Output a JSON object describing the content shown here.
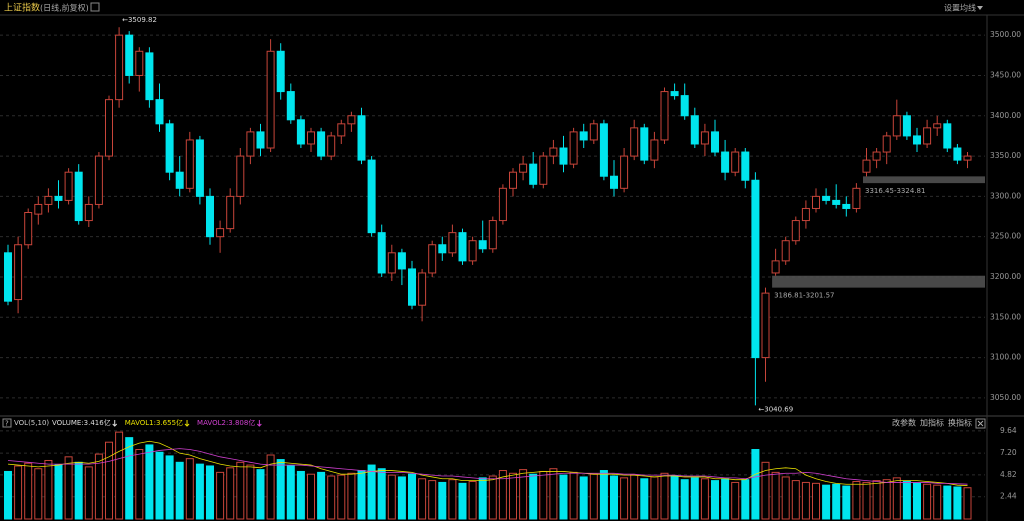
{
  "header": {
    "title": "上证指数",
    "subtitle": "(日线,前复权)",
    "menu": "设置均线"
  },
  "chart_data": [
    {
      "type": "candlestick",
      "open": [
        3230,
        3172,
        3240,
        3278,
        3290,
        3300,
        3295,
        3330,
        3270,
        3290,
        3350,
        3420,
        3500,
        3450,
        3478,
        3420,
        3390,
        3330,
        3310,
        3370,
        3300,
        3250,
        3260,
        3300,
        3350,
        3380,
        3360,
        3480,
        3430,
        3395,
        3365,
        3380,
        3350,
        3375,
        3390,
        3400,
        3345,
        3255,
        3205,
        3230,
        3210,
        3165,
        3205,
        3240,
        3230,
        3255,
        3220,
        3245,
        3235,
        3270,
        3310,
        3330,
        3340,
        3315,
        3350,
        3360,
        3340,
        3380,
        3370,
        3390,
        3325,
        3310,
        3350,
        3385,
        3345,
        3370,
        3430,
        3425,
        3400,
        3365,
        3380,
        3355,
        3330,
        3355,
        3320,
        3100,
        3205,
        3220,
        3245,
        3270,
        3285,
        3300,
        3295,
        3290,
        3285,
        3330,
        3345,
        3355,
        3375,
        3400,
        3375,
        3365,
        3385,
        3390,
        3360,
        3345
      ],
      "high": [
        3240,
        3250,
        3285,
        3300,
        3310,
        3320,
        3335,
        3340,
        3300,
        3355,
        3425,
        3509.82,
        3505,
        3485,
        3485,
        3440,
        3395,
        3350,
        3380,
        3375,
        3310,
        3270,
        3310,
        3360,
        3385,
        3390,
        3495,
        3490,
        3440,
        3400,
        3385,
        3385,
        3380,
        3395,
        3405,
        3410,
        3350,
        3265,
        3240,
        3235,
        3220,
        3210,
        3245,
        3250,
        3265,
        3260,
        3250,
        3270,
        3275,
        3315,
        3335,
        3350,
        3355,
        3355,
        3370,
        3375,
        3385,
        3390,
        3395,
        3395,
        3345,
        3360,
        3395,
        3390,
        3380,
        3435,
        3440,
        3440,
        3410,
        3390,
        3395,
        3370,
        3360,
        3360,
        3330,
        3186.81,
        3235,
        3250,
        3275,
        3295,
        3310,
        3310,
        3315,
        3300,
        3316.45,
        3360,
        3360,
        3380,
        3420,
        3405,
        3385,
        3395,
        3400,
        3395,
        3365,
        3355
      ],
      "low": [
        3165,
        3155,
        3235,
        3265,
        3280,
        3285,
        3290,
        3265,
        3262,
        3285,
        3345,
        3410,
        3440,
        3430,
        3410,
        3380,
        3320,
        3300,
        3305,
        3290,
        3240,
        3230,
        3255,
        3290,
        3340,
        3350,
        3355,
        3420,
        3390,
        3360,
        3355,
        3345,
        3345,
        3365,
        3380,
        3340,
        3250,
        3200,
        3195,
        3190,
        3160,
        3145,
        3200,
        3220,
        3225,
        3215,
        3215,
        3230,
        3230,
        3265,
        3300,
        3320,
        3310,
        3310,
        3340,
        3330,
        3335,
        3360,
        3365,
        3320,
        3300,
        3305,
        3345,
        3340,
        3335,
        3365,
        3420,
        3395,
        3360,
        3350,
        3350,
        3320,
        3325,
        3310,
        3040.69,
        3070,
        3201.57,
        3215,
        3240,
        3260,
        3280,
        3290,
        3285,
        3275,
        3280,
        3324.81,
        3335,
        3340,
        3370,
        3370,
        3355,
        3360,
        3375,
        3355,
        3340,
        3335
      ],
      "close": [
        3170,
        3240,
        3280,
        3290,
        3300,
        3295,
        3330,
        3270,
        3290,
        3350,
        3420,
        3500,
        3450,
        3480,
        3420,
        3390,
        3330,
        3310,
        3370,
        3300,
        3250,
        3260,
        3300,
        3350,
        3380,
        3360,
        3480,
        3430,
        3395,
        3365,
        3380,
        3350,
        3375,
        3390,
        3400,
        3345,
        3255,
        3205,
        3230,
        3210,
        3165,
        3205,
        3240,
        3230,
        3255,
        3220,
        3245,
        3235,
        3270,
        3310,
        3330,
        3340,
        3315,
        3350,
        3360,
        3340,
        3380,
        3370,
        3390,
        3325,
        3310,
        3350,
        3385,
        3345,
        3370,
        3430,
        3425,
        3400,
        3365,
        3380,
        3355,
        3330,
        3355,
        3320,
        3100,
        3180,
        3220,
        3245,
        3270,
        3285,
        3300,
        3295,
        3290,
        3285,
        3310,
        3345,
        3355,
        3375,
        3400,
        3375,
        3365,
        3385,
        3390,
        3360,
        3345,
        3350
      ],
      "up_color": "#c8453a",
      "down_color": "#00e5ee",
      "ylim": [
        3035,
        3525
      ],
      "yticks": [
        {
          "value": 3050,
          "label": "3050.00"
        },
        {
          "value": 3100,
          "label": "3100.00"
        },
        {
          "value": 3150,
          "label": "3150.00"
        },
        {
          "value": 3200,
          "label": "3200.00"
        },
        {
          "value": 3250,
          "label": "3250.00"
        },
        {
          "value": 3300,
          "label": "3300.00"
        },
        {
          "value": 3350,
          "label": "3350.00"
        },
        {
          "value": 3400,
          "label": "3400.00"
        },
        {
          "value": 3450,
          "label": "3450.00"
        },
        {
          "value": 3500,
          "label": "3500.00"
        }
      ],
      "grid": true,
      "annotations": {
        "max": "←3509.82",
        "min": "←3040.69"
      },
      "gaps": [
        {
          "low": 3316.45,
          "high": 3324.81,
          "label": "3316.45-3324.81"
        },
        {
          "low": 3186.81,
          "high": 3201.57,
          "label": "3186.81-3201.57"
        }
      ]
    },
    {
      "type": "volume",
      "indicator": "VOL(5,10)",
      "series": [
        {
          "name": "VOLUME:3.416亿",
          "color": "#dddddd",
          "values": [
            5.2,
            5.8,
            6.1,
            5.5,
            6.4,
            5.9,
            6.8,
            6.2,
            5.7,
            7.1,
            8.4,
            9.5,
            8.9,
            7.6,
            8.1,
            7.3,
            6.9,
            6.2,
            6.6,
            6.0,
            5.8,
            5.1,
            5.6,
            6.2,
            5.9,
            5.4,
            7.0,
            6.5,
            5.8,
            5.2,
            4.9,
            5.1,
            4.7,
            4.8,
            5.0,
            5.3,
            5.9,
            5.5,
            4.8,
            4.6,
            4.9,
            4.4,
            4.2,
            4.0,
            4.3,
            3.9,
            4.1,
            4.5,
            4.7,
            5.3,
            5.0,
            5.4,
            4.9,
            5.2,
            5.5,
            4.8,
            5.1,
            4.6,
            4.9,
            5.3,
            4.7,
            4.5,
            4.8,
            4.4,
            4.6,
            5.0,
            4.7,
            4.3,
            4.5,
            4.4,
            4.2,
            4.4,
            4.0,
            4.3,
            7.6,
            6.2,
            5.1,
            4.6,
            4.2,
            4.0,
            3.9,
            3.7,
            3.8,
            3.6,
            4.1,
            4.0,
            4.2,
            4.3,
            4.5,
            4.1,
            3.9,
            3.8,
            3.7,
            3.6,
            3.5,
            3.42
          ]
        },
        {
          "name": "MAVOL1:3.655亿",
          "color": "#e8e000",
          "values": [
            6.0,
            5.9,
            5.8,
            5.7,
            5.8,
            5.9,
            6.1,
            6.2,
            6.1,
            6.3,
            6.8,
            7.4,
            7.9,
            8.3,
            8.5,
            8.3,
            7.8,
            7.2,
            7.0,
            6.6,
            6.3,
            6.0,
            5.8,
            5.7,
            5.7,
            5.6,
            6.0,
            6.2,
            6.1,
            6.0,
            5.9,
            5.5,
            5.2,
            4.9,
            4.9,
            5.0,
            5.2,
            5.3,
            5.3,
            5.2,
            5.1,
            4.8,
            4.6,
            4.4,
            4.4,
            4.2,
            4.2,
            4.2,
            4.3,
            4.6,
            4.8,
            5.0,
            5.1,
            5.2,
            5.2,
            5.2,
            5.1,
            5.0,
            4.9,
            4.9,
            4.9,
            4.8,
            4.8,
            4.7,
            4.6,
            4.7,
            4.7,
            4.6,
            4.6,
            4.6,
            4.4,
            4.4,
            4.3,
            4.3,
            4.9,
            5.3,
            5.5,
            5.6,
            5.5,
            4.8,
            4.4,
            4.1,
            3.9,
            3.8,
            3.8,
            3.8,
            3.9,
            4.0,
            4.2,
            4.2,
            4.2,
            4.1,
            4.0,
            3.9,
            3.7,
            3.655
          ]
        },
        {
          "name": "MAVOL2:3.808亿",
          "color": "#d040d0",
          "values": [
            6.4,
            6.3,
            6.2,
            6.1,
            6.0,
            6.0,
            6.0,
            6.0,
            6.0,
            6.1,
            6.3,
            6.6,
            6.9,
            7.1,
            7.3,
            7.5,
            7.6,
            7.7,
            7.6,
            7.4,
            7.1,
            6.8,
            6.6,
            6.4,
            6.2,
            6.0,
            5.9,
            5.9,
            5.9,
            5.9,
            5.8,
            5.7,
            5.6,
            5.5,
            5.4,
            5.3,
            5.2,
            5.1,
            5.1,
            5.1,
            5.0,
            4.9,
            4.8,
            4.7,
            4.7,
            4.6,
            4.5,
            4.4,
            4.4,
            4.4,
            4.5,
            4.6,
            4.7,
            4.8,
            4.9,
            5.0,
            5.0,
            5.0,
            5.0,
            5.0,
            5.0,
            4.9,
            4.9,
            4.8,
            4.8,
            4.8,
            4.8,
            4.7,
            4.7,
            4.7,
            4.6,
            4.5,
            4.5,
            4.4,
            4.6,
            4.8,
            4.9,
            5.0,
            5.0,
            5.1,
            5.0,
            4.8,
            4.6,
            4.4,
            4.3,
            4.2,
            4.1,
            4.0,
            4.0,
            4.0,
            4.0,
            4.0,
            3.9,
            3.9,
            3.85,
            3.808
          ]
        }
      ],
      "ylim": [
        0,
        10.5
      ],
      "yticks": [
        2.44,
        4.82,
        {
          "value": 7.2,
          "label": "7.20"
        },
        9.64
      ]
    }
  ],
  "toolbar": [
    "改参数",
    "加指标",
    "换指标"
  ]
}
